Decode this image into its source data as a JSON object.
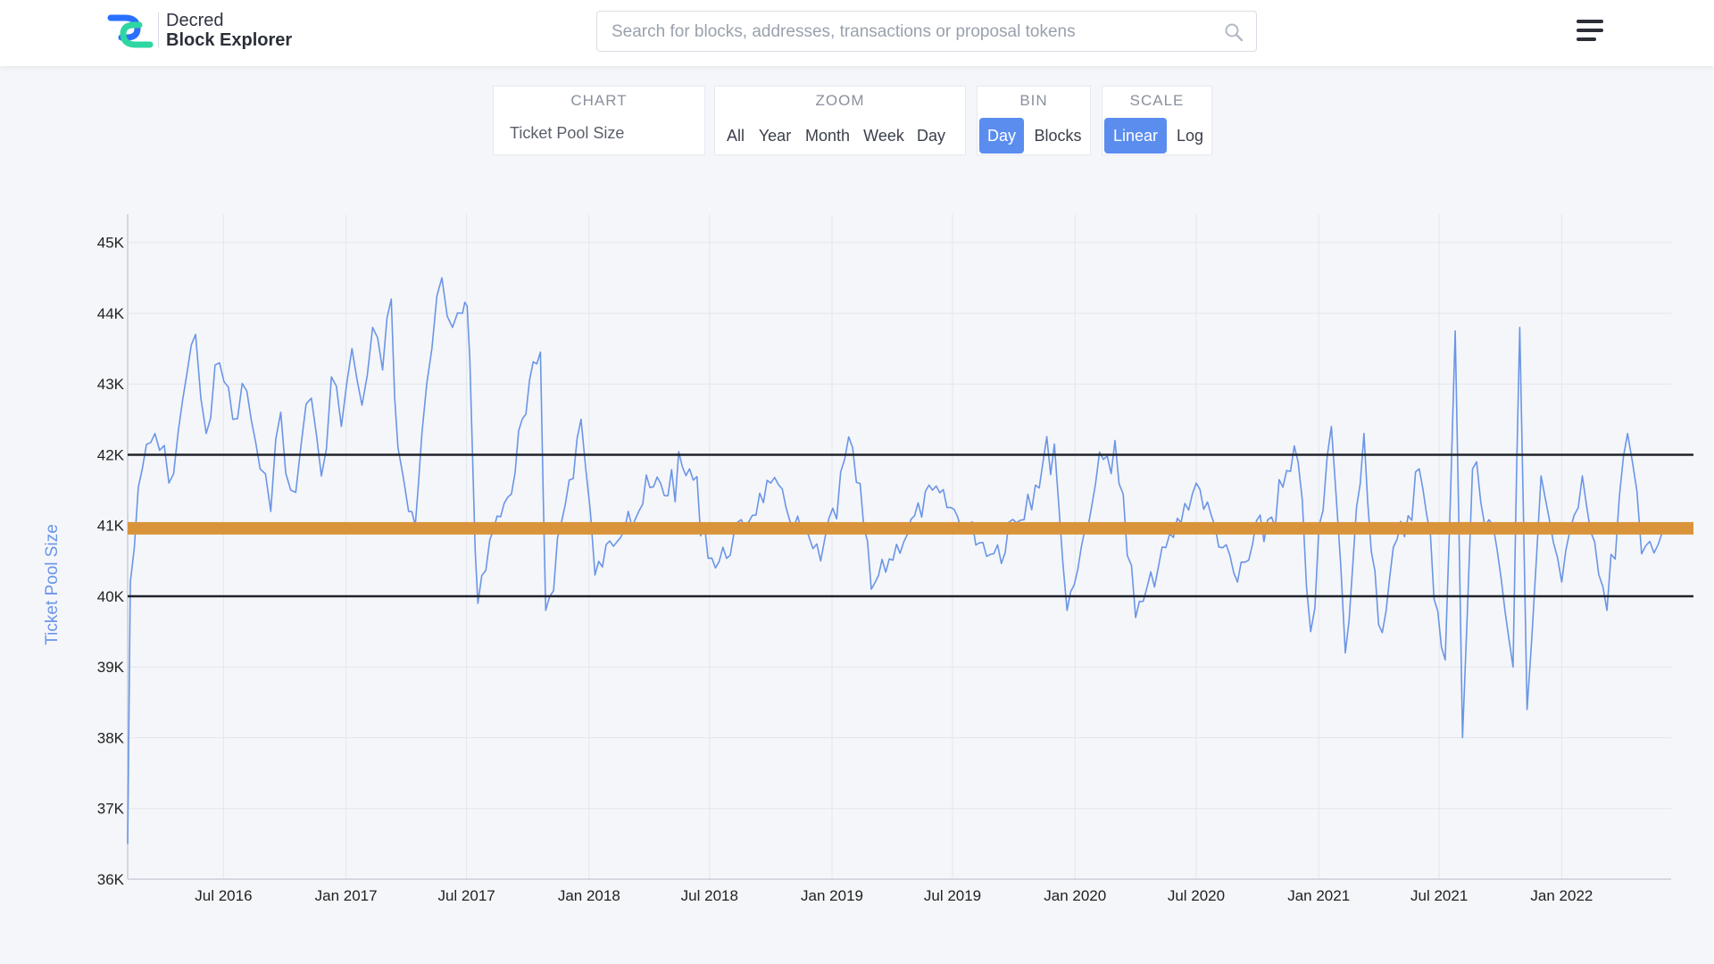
{
  "header": {
    "brand_line1": "Decred",
    "brand_line2": "Block Explorer",
    "search_placeholder": "Search for blocks, addresses, transactions or proposal tokens"
  },
  "controls": {
    "chart": {
      "label": "CHART",
      "value": "Ticket Pool Size"
    },
    "zoom": {
      "label": "ZOOM",
      "options": [
        "All",
        "Year",
        "Month",
        "Week",
        "Day"
      ]
    },
    "bin": {
      "label": "BIN",
      "options": [
        "Day",
        "Blocks"
      ],
      "selected": "Day"
    },
    "scale": {
      "label": "SCALE",
      "options": [
        "Linear",
        "Log"
      ],
      "selected": "Linear"
    }
  },
  "colors": {
    "accent": "#5b8def",
    "series": "#6b95e6",
    "target": "#d9943b",
    "bounds": "#1f2229",
    "ylabel": "#6b95e6"
  },
  "chart_data": {
    "type": "line",
    "ylabel": "Ticket Pool Size",
    "ylim": [
      36000,
      45400
    ],
    "y_ticks": [
      "45K",
      "44K",
      "43K",
      "42K",
      "41K",
      "40K",
      "39K",
      "38K",
      "37K",
      "36K"
    ],
    "x_ticks": [
      "Jul 2016",
      "Jan 2017",
      "Jul 2017",
      "Jan 2018",
      "Jul 2018",
      "Jan 2019",
      "Jul 2019",
      "Jan 2020",
      "Jul 2020",
      "Jan 2021",
      "Jul 2021",
      "Jan 2022"
    ],
    "x_range": [
      "2016-02-08",
      "2022-06-01"
    ],
    "target_line": 40960,
    "bound_lines": [
      42000,
      40000
    ],
    "grid": true,
    "series": [
      {
        "values": [
          [
            "2016-02-08",
            36500
          ],
          [
            "2016-02-12",
            40200
          ],
          [
            "2016-03-01",
            41800
          ],
          [
            "2016-03-20",
            42300
          ],
          [
            "2016-04-10",
            41600
          ],
          [
            "2016-05-01",
            42800
          ],
          [
            "2016-05-20",
            43700
          ],
          [
            "2016-06-05",
            42300
          ],
          [
            "2016-06-25",
            43300
          ],
          [
            "2016-07-15",
            42500
          ],
          [
            "2016-08-05",
            42900
          ],
          [
            "2016-08-25",
            41800
          ],
          [
            "2016-09-10",
            41200
          ],
          [
            "2016-09-25",
            42600
          ],
          [
            "2016-10-10",
            41500
          ],
          [
            "2016-10-25",
            42100
          ],
          [
            "2016-11-10",
            42800
          ],
          [
            "2016-11-25",
            41700
          ],
          [
            "2016-12-10",
            43100
          ],
          [
            "2016-12-25",
            42400
          ],
          [
            "2017-01-10",
            43500
          ],
          [
            "2017-01-25",
            42700
          ],
          [
            "2017-02-10",
            43800
          ],
          [
            "2017-02-25",
            43200
          ],
          [
            "2017-03-10",
            44200
          ],
          [
            "2017-03-20",
            42100
          ],
          [
            "2017-04-05",
            41200
          ],
          [
            "2017-04-15",
            41000
          ],
          [
            "2017-04-25",
            42300
          ],
          [
            "2017-05-10",
            43500
          ],
          [
            "2017-05-25",
            44500
          ],
          [
            "2017-06-10",
            43800
          ],
          [
            "2017-06-25",
            44000
          ],
          [
            "2017-07-02",
            44100
          ],
          [
            "2017-07-10",
            42000
          ],
          [
            "2017-07-18",
            39900
          ],
          [
            "2017-08-05",
            40800
          ],
          [
            "2017-09-01",
            41400
          ],
          [
            "2017-10-20",
            43450
          ],
          [
            "2017-10-28",
            39800
          ],
          [
            "2017-12-20",
            42500
          ],
          [
            "2018-01-10",
            40300
          ],
          [
            "2018-03-01",
            41200
          ],
          [
            "2018-06-01",
            41800
          ],
          [
            "2018-07-10",
            40400
          ],
          [
            "2018-10-01",
            41600
          ],
          [
            "2018-12-15",
            40500
          ],
          [
            "2019-02-01",
            42100
          ],
          [
            "2019-03-01",
            40100
          ],
          [
            "2019-06-01",
            41500
          ],
          [
            "2019-09-01",
            40600
          ],
          [
            "2019-12-01",
            42150
          ],
          [
            "2019-12-20",
            39800
          ],
          [
            "2020-02-01",
            41600
          ],
          [
            "2020-03-01",
            42200
          ],
          [
            "2020-04-01",
            39700
          ],
          [
            "2020-07-01",
            41600
          ],
          [
            "2020-09-01",
            40200
          ],
          [
            "2020-12-01",
            41900
          ],
          [
            "2020-12-20",
            39500
          ],
          [
            "2021-01-20",
            42400
          ],
          [
            "2021-02-10",
            39200
          ],
          [
            "2021-03-10",
            42300
          ],
          [
            "2021-04-01",
            39600
          ],
          [
            "2021-06-01",
            41800
          ],
          [
            "2021-07-10",
            39100
          ],
          [
            "2021-07-25",
            43750
          ],
          [
            "2021-08-05",
            38000
          ],
          [
            "2021-08-20",
            41800
          ],
          [
            "2021-09-20",
            41000
          ],
          [
            "2021-10-20",
            39000
          ],
          [
            "2021-10-30",
            43800
          ],
          [
            "2021-11-10",
            38400
          ],
          [
            "2021-12-01",
            41700
          ],
          [
            "2022-01-01",
            40200
          ],
          [
            "2022-02-01",
            41700
          ],
          [
            "2022-03-10",
            39800
          ],
          [
            "2022-04-10",
            42300
          ],
          [
            "2022-05-01",
            40600
          ],
          [
            "2022-06-01",
            40900
          ]
        ]
      }
    ]
  }
}
